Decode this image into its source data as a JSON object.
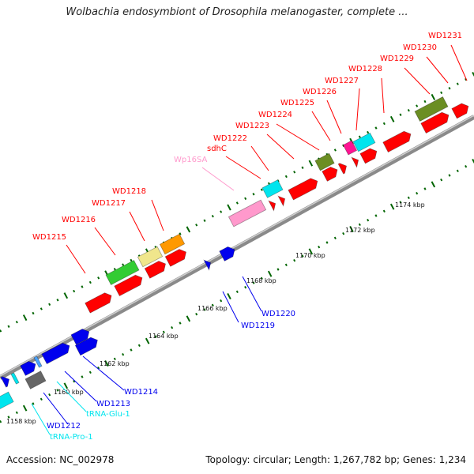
{
  "title": "Wolbachia endosymbiont of Drosophila melanogaster, complete ...",
  "footer": {
    "accession": "Accession: NC_002978",
    "stats": "Topology: circular; Length: 1,267,782 bp; Genes: 1,234"
  },
  "colors": {
    "red": "#ff0000",
    "blue": "#0000ee",
    "cyan": "#00e5ee",
    "olive": "#6b8e23",
    "green": "#33cc33",
    "khaki": "#f0e68c",
    "orange": "#ff9900",
    "pink": "#ff99cc",
    "magenta": "#ff1493",
    "grey": "#666666",
    "tick": "#006400"
  },
  "scale_labels": [
    "1158 kbp",
    "1160 kbp",
    "1162 kbp",
    "1164 kbp",
    "1166 kbp",
    "1168 kbp",
    "1170 kbp",
    "1172 kbp",
    "1174 kbp"
  ],
  "gene_labels": [
    {
      "text": "WD1231",
      "color": "red"
    },
    {
      "text": "WD1230",
      "color": "red"
    },
    {
      "text": "WD1229",
      "color": "red"
    },
    {
      "text": "WD1228",
      "color": "red"
    },
    {
      "text": "WD1227",
      "color": "red"
    },
    {
      "text": "WD1226",
      "color": "red"
    },
    {
      "text": "WD1225",
      "color": "red"
    },
    {
      "text": "WD1224",
      "color": "red"
    },
    {
      "text": "WD1223",
      "color": "red"
    },
    {
      "text": "WD1222",
      "color": "red"
    },
    {
      "text": "sdhC",
      "color": "red"
    },
    {
      "text": "Wp16SA",
      "color": "pink"
    },
    {
      "text": "WD1218",
      "color": "red"
    },
    {
      "text": "WD1217",
      "color": "red"
    },
    {
      "text": "WD1216",
      "color": "red"
    },
    {
      "text": "WD1215",
      "color": "red"
    },
    {
      "text": "WD1220",
      "color": "blue"
    },
    {
      "text": "WD1219",
      "color": "blue"
    },
    {
      "text": "WD1214",
      "color": "blue"
    },
    {
      "text": "WD1213",
      "color": "blue"
    },
    {
      "text": "tRNA-Glu-1",
      "color": "cyan"
    },
    {
      "text": "WD1212",
      "color": "blue"
    },
    {
      "text": "tRNA-Pro-1",
      "color": "cyan"
    }
  ]
}
